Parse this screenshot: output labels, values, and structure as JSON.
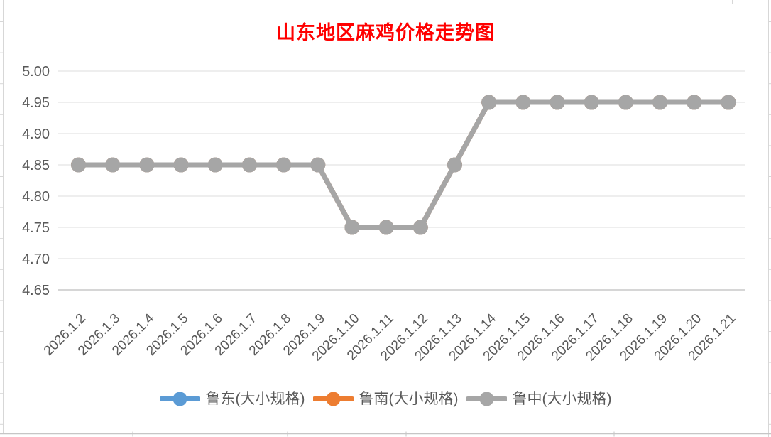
{
  "title": {
    "text": "山东地区麻鸡价格走势图",
    "color": "#FF0000"
  },
  "chart_data": {
    "type": "line",
    "title": "山东地区麻鸡价格走势图",
    "categories": [
      "2026.1.2",
      "2026.1.3",
      "2026.1.4",
      "2026.1.5",
      "2026.1.6",
      "2026.1.7",
      "2026.1.8",
      "2026.1.9",
      "2026.1.10",
      "2026.1.11",
      "2026.1.12",
      "2026.1.13",
      "2026.1.14",
      "2026.1.15",
      "2026.1.16",
      "2026.1.17",
      "2026.1.18",
      "2026.1.19",
      "2026.1.20",
      "2026.1.21"
    ],
    "series": [
      {
        "name": "鲁东(大小规格)",
        "color": "#5B9BD5",
        "values": [
          4.85,
          4.85,
          4.85,
          4.85,
          4.85,
          4.85,
          4.85,
          4.85,
          4.75,
          4.75,
          4.75,
          4.85,
          4.95,
          4.95,
          4.95,
          4.95,
          4.95,
          4.95,
          4.95,
          4.95
        ]
      },
      {
        "name": "鲁南(大小规格)",
        "color": "#ED7D31",
        "values": [
          4.85,
          4.85,
          4.85,
          4.85,
          4.85,
          4.85,
          4.85,
          4.85,
          4.75,
          4.75,
          4.75,
          4.85,
          4.95,
          4.95,
          4.95,
          4.95,
          4.95,
          4.95,
          4.95,
          4.95
        ]
      },
      {
        "name": "鲁中(大小规格)",
        "color": "#A6A6A6",
        "values": [
          4.85,
          4.85,
          4.85,
          4.85,
          4.85,
          4.85,
          4.85,
          4.85,
          4.75,
          4.75,
          4.75,
          4.85,
          4.95,
          4.95,
          4.95,
          4.95,
          4.95,
          4.95,
          4.95,
          4.95
        ]
      }
    ],
    "xlabel": "",
    "ylabel": "",
    "ylim": [
      4.65,
      5.0
    ],
    "y_ticks": [
      "5.00",
      "4.95",
      "4.90",
      "4.85",
      "4.80",
      "4.75",
      "4.70",
      "4.65"
    ],
    "grid": "horizontal-only",
    "legend_position": "bottom",
    "axis_text_color": "#595959"
  }
}
